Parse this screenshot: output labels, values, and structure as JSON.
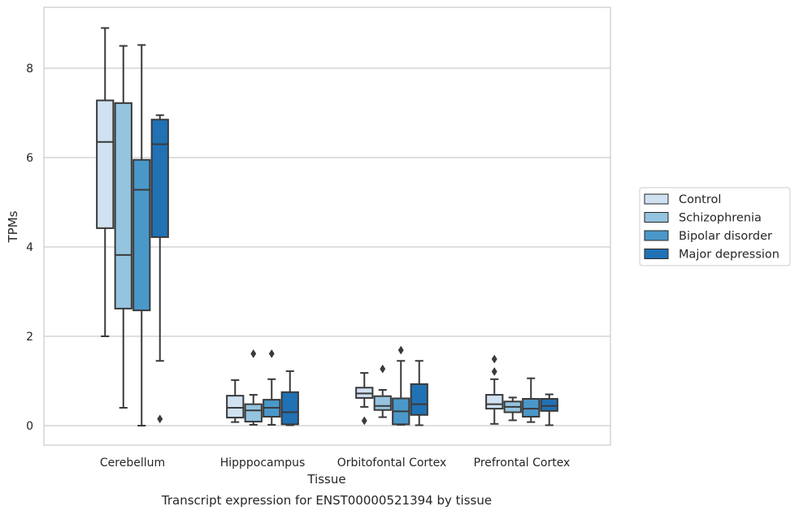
{
  "chart_data": {
    "type": "box",
    "xlabel": "Tissue",
    "ylabel": "TPMs",
    "caption": "Transcript expression for ENST00000521394 by tissue",
    "ylim": [
      -0.4,
      9.4
    ],
    "yticks": [
      0,
      2,
      4,
      6,
      8
    ],
    "grid": "horizontal",
    "legend_position": "right",
    "categories": [
      "Cerebellum",
      "Hipppocampus",
      "Orbitofontal Cortex",
      "Prefrontal Cortex"
    ],
    "series": [
      {
        "name": "Control",
        "color": "#d0e1f2",
        "boxes": [
          {
            "whislo": 2.0,
            "q1": 4.42,
            "med": 6.35,
            "q3": 7.28,
            "whishi": 8.9,
            "fliers": []
          },
          {
            "whislo": 0.08,
            "q1": 0.18,
            "med": 0.4,
            "q3": 0.67,
            "whishi": 1.02,
            "fliers": []
          },
          {
            "whislo": 0.42,
            "q1": 0.62,
            "med": 0.72,
            "q3": 0.85,
            "whishi": 1.18,
            "fliers": [
              0.11
            ]
          },
          {
            "whislo": 0.04,
            "q1": 0.38,
            "med": 0.48,
            "q3": 0.69,
            "whishi": 1.04,
            "fliers": [
              1.21,
              1.49
            ]
          }
        ]
      },
      {
        "name": "Schizophrenia",
        "color": "#94c4df",
        "boxes": [
          {
            "whislo": 0.4,
            "q1": 2.62,
            "med": 3.82,
            "q3": 7.22,
            "whishi": 8.5,
            "fliers": []
          },
          {
            "whislo": 0.02,
            "q1": 0.09,
            "med": 0.34,
            "q3": 0.48,
            "whishi": 0.69,
            "fliers": [
              1.61
            ]
          },
          {
            "whislo": 0.19,
            "q1": 0.35,
            "med": 0.44,
            "q3": 0.66,
            "whishi": 0.8,
            "fliers": [
              1.27
            ]
          },
          {
            "whislo": 0.12,
            "q1": 0.3,
            "med": 0.42,
            "q3": 0.54,
            "whishi": 0.63,
            "fliers": []
          }
        ]
      },
      {
        "name": "Bipolar disorder",
        "color": "#4a98c9",
        "boxes": [
          {
            "whislo": 0.0,
            "q1": 2.58,
            "med": 5.28,
            "q3": 5.95,
            "whishi": 8.52,
            "fliers": []
          },
          {
            "whislo": 0.02,
            "q1": 0.2,
            "med": 0.4,
            "q3": 0.58,
            "whishi": 1.04,
            "fliers": [
              1.61
            ]
          },
          {
            "whislo": 0.02,
            "q1": 0.03,
            "med": 0.32,
            "q3": 0.61,
            "whishi": 1.45,
            "fliers": [
              1.69
            ]
          },
          {
            "whislo": 0.08,
            "q1": 0.2,
            "med": 0.38,
            "q3": 0.6,
            "whishi": 1.06,
            "fliers": []
          }
        ]
      },
      {
        "name": "Major depression",
        "color": "#2171b5",
        "boxes": [
          {
            "whislo": 1.45,
            "q1": 4.22,
            "med": 6.3,
            "q3": 6.85,
            "whishi": 6.95,
            "fliers": [
              0.15
            ]
          },
          {
            "whislo": 0.01,
            "q1": 0.03,
            "med": 0.3,
            "q3": 0.75,
            "whishi": 1.22,
            "fliers": []
          },
          {
            "whislo": 0.01,
            "q1": 0.24,
            "med": 0.48,
            "q3": 0.93,
            "whishi": 1.45,
            "fliers": []
          },
          {
            "whislo": 0.01,
            "q1": 0.33,
            "med": 0.44,
            "q3": 0.6,
            "whishi": 0.7,
            "fliers": []
          }
        ]
      }
    ]
  }
}
